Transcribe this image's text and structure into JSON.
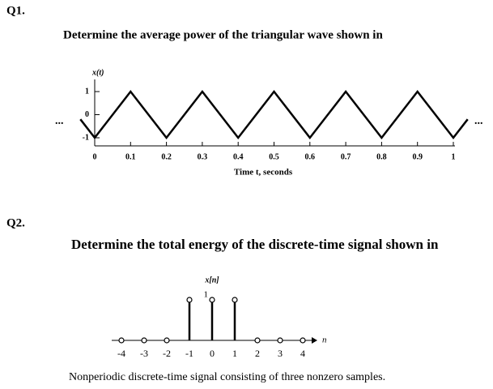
{
  "q1": {
    "label": "Q1.",
    "text": "Determine the average power of the triangular wave shown in",
    "chart": {
      "type": "line",
      "y_label": "x(t)",
      "x_label": "Time t, seconds",
      "ellipsis": "...",
      "x": [
        -0.04,
        0,
        0.1,
        0.2,
        0.3,
        0.4,
        0.5,
        0.6,
        0.7,
        0.8,
        0.9,
        1,
        1.04
      ],
      "values": [
        -0.2,
        -1,
        1,
        -1,
        1,
        -1,
        1,
        -1,
        1,
        -1,
        1,
        -1,
        -0.2
      ],
      "xlim": [
        -0.04,
        1.04
      ],
      "ylim": [
        -1,
        1
      ],
      "xticks": [
        0,
        0.1,
        0.2,
        0.3,
        0.4,
        0.5,
        0.6,
        0.7,
        0.8,
        0.9,
        1
      ],
      "yticks": [
        -1,
        0,
        1
      ],
      "color": "#000000"
    }
  },
  "q2": {
    "label": "Q2.",
    "text": "Determine the total energy of the discrete-time signal shown in",
    "chart": {
      "type": "stem",
      "y_label": "x[n]",
      "x_label": "n",
      "x": [
        -4,
        -3,
        -2,
        -1,
        0,
        1,
        2,
        3,
        4
      ],
      "values": [
        0,
        0,
        0,
        1,
        1,
        1,
        0,
        0,
        0
      ],
      "xticks": [
        -4,
        -3,
        -2,
        -1,
        0,
        1,
        2,
        3,
        4
      ],
      "yticks": [
        1
      ],
      "color": "#000000"
    },
    "caption": "Nonperiodic discrete-time signal consisting of three nonzero samples."
  }
}
